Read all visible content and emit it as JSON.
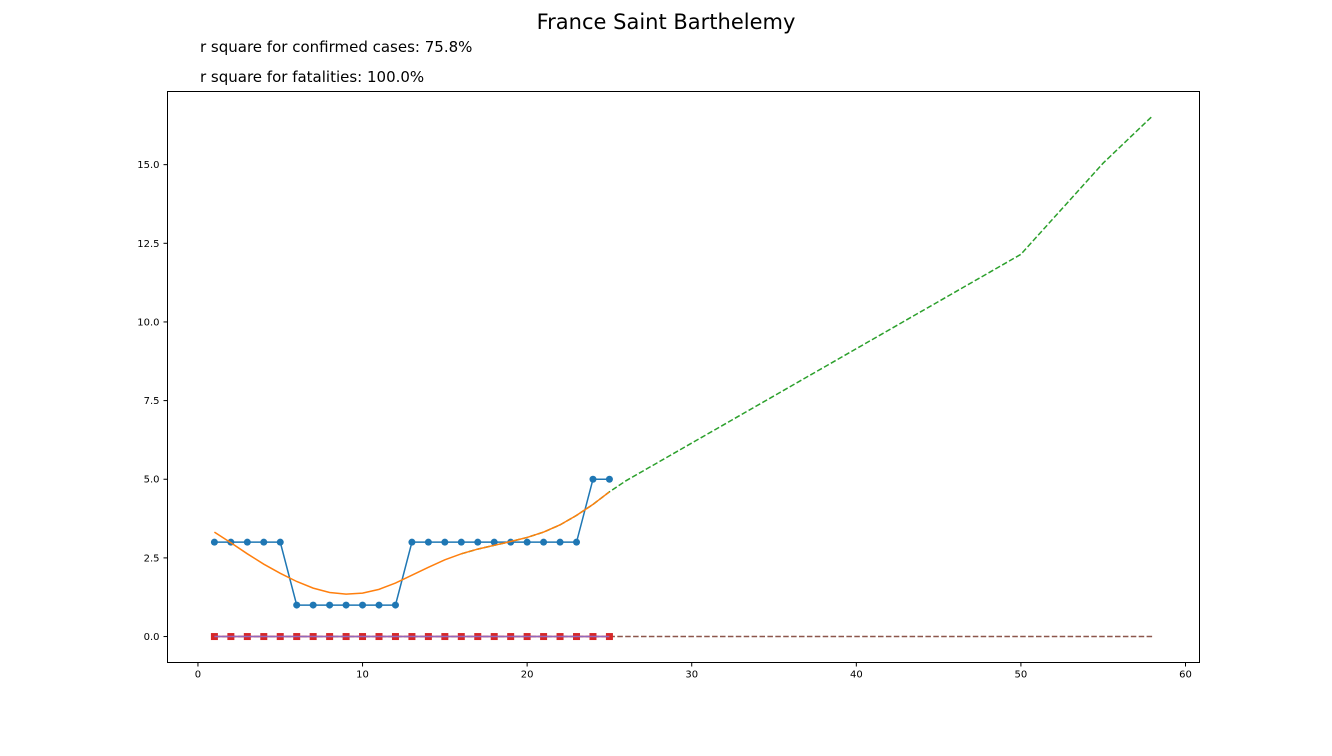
{
  "title": "France Saint Barthelemy",
  "annotations": [
    "r square for confirmed cases: 75.8%",
    "r square for fatalities: 100.0%"
  ],
  "chart_data": {
    "type": "line",
    "title": "France Saint Barthelemy",
    "xlabel": "",
    "ylabel": "",
    "xlim": [
      -1.85,
      60.85
    ],
    "ylim": [
      -0.825,
      17.325
    ],
    "xticks": [
      0,
      10,
      20,
      30,
      40,
      50,
      60
    ],
    "yticks": [
      0.0,
      2.5,
      5.0,
      7.5,
      10.0,
      12.5,
      15.0
    ],
    "ytick_labels": [
      "0.0",
      "2.5",
      "5.0",
      "7.5",
      "10.0",
      "12.5",
      "15.0"
    ],
    "grid": false,
    "legend": "none",
    "series": [
      {
        "key": "confirmed",
        "color": "#1f77b4",
        "style": "solid-markers-circle",
        "x": [
          1,
          2,
          3,
          4,
          5,
          6,
          7,
          8,
          9,
          10,
          11,
          12,
          13,
          14,
          15,
          16,
          17,
          18,
          19,
          20,
          21,
          22,
          23,
          24,
          25
        ],
        "y": [
          3,
          3,
          3,
          3,
          3,
          1,
          1,
          1,
          1,
          1,
          1,
          1,
          3,
          3,
          3,
          3,
          3,
          3,
          3,
          3,
          3,
          3,
          3,
          5,
          5
        ]
      },
      {
        "key": "confirmed_fit",
        "color": "#ff7f0e",
        "style": "solid",
        "x": [
          1,
          2,
          3,
          4,
          5,
          6,
          7,
          8,
          9,
          10,
          11,
          12,
          13,
          14,
          15,
          16,
          17,
          18,
          19,
          20,
          21,
          22,
          23,
          24,
          25
        ],
        "y": [
          3.32,
          2.98,
          2.63,
          2.3,
          2.01,
          1.75,
          1.54,
          1.4,
          1.35,
          1.38,
          1.5,
          1.7,
          1.95,
          2.2,
          2.44,
          2.63,
          2.78,
          2.9,
          3.02,
          3.15,
          3.32,
          3.55,
          3.85,
          4.2,
          4.6
        ]
      },
      {
        "key": "confirmed_projection",
        "color": "#2ca02c",
        "style": "dashed",
        "x": [
          16,
          17,
          18,
          19,
          20,
          21,
          22,
          23,
          24,
          25,
          26,
          28,
          30,
          35,
          40,
          45,
          50,
          55,
          58
        ],
        "y": [
          2.63,
          2.78,
          2.9,
          3.02,
          3.15,
          3.32,
          3.55,
          3.85,
          4.2,
          4.6,
          4.95,
          5.55,
          6.15,
          7.65,
          9.15,
          10.65,
          12.15,
          15.05,
          16.55
        ]
      },
      {
        "key": "fatalities",
        "color": "#d62728",
        "style": "solid-markers-square",
        "x": [
          1,
          2,
          3,
          4,
          5,
          6,
          7,
          8,
          9,
          10,
          11,
          12,
          13,
          14,
          15,
          16,
          17,
          18,
          19,
          20,
          21,
          22,
          23,
          24,
          25
        ],
        "y": [
          0,
          0,
          0,
          0,
          0,
          0,
          0,
          0,
          0,
          0,
          0,
          0,
          0,
          0,
          0,
          0,
          0,
          0,
          0,
          0,
          0,
          0,
          0,
          0,
          0
        ]
      },
      {
        "key": "fatalities_fit",
        "color": "#9467bd",
        "style": "solid",
        "x": [
          1,
          25
        ],
        "y": [
          0,
          0
        ]
      },
      {
        "key": "fatalities_projection",
        "color": "#8c564b",
        "style": "dashed",
        "x": [
          1,
          58
        ],
        "y": [
          0,
          0
        ]
      }
    ]
  }
}
